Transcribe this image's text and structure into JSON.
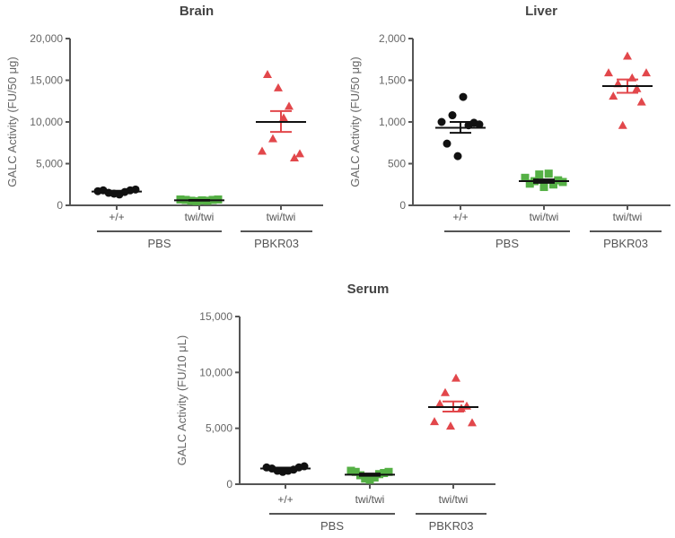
{
  "colors": {
    "wt": "#111111",
    "twi": "#55b045",
    "treated": "#e2474b",
    "axis": "#555555"
  },
  "chart_data": [
    {
      "type": "scatter",
      "title": "Brain",
      "ylabel": "GALC Activity (FU/50 μg)",
      "ylim": [
        0,
        20000
      ],
      "yticks": [
        0,
        5000,
        10000,
        15000,
        20000
      ],
      "ytick_labels": [
        "0",
        "5,000",
        "10,000",
        "15,000",
        "20,000"
      ],
      "categories": [
        "+/+",
        "twi/twi",
        "twi/twi"
      ],
      "groups": [
        {
          "label": "PBS",
          "span": [
            0,
            1
          ]
        },
        {
          "label": "PBKR03",
          "span": [
            2,
            2
          ]
        }
      ],
      "series": [
        {
          "name": "+/+ PBS",
          "marker": "circle",
          "color_key": "wt",
          "values": [
            1700,
            1800,
            1500,
            1400,
            1300,
            1600,
            1800,
            1900
          ],
          "mean": 1650,
          "sem": [
            1550,
            1750
          ]
        },
        {
          "name": "twi/twi PBS",
          "marker": "square",
          "color_key": "twi",
          "values": [
            700,
            650,
            550,
            500,
            600,
            550,
            650,
            700
          ],
          "mean": 600,
          "sem": [
            560,
            640
          ]
        },
        {
          "name": "twi/twi PBKR03",
          "marker": "triangle",
          "color_key": "treated",
          "values": [
            6500,
            15700,
            8000,
            14100,
            10500,
            11900,
            5700,
            6200
          ],
          "mean": 10000,
          "sem": [
            8800,
            11300
          ]
        }
      ]
    },
    {
      "type": "scatter",
      "title": "Liver",
      "ylabel": "GALC Activity (FU/50 μg)",
      "ylim": [
        0,
        2000
      ],
      "yticks": [
        0,
        500,
        1000,
        1500,
        2000
      ],
      "ytick_labels": [
        "0",
        "500",
        "1,000",
        "1,500",
        "2,000"
      ],
      "categories": [
        "+/+",
        "twi/twi",
        "twi/twi"
      ],
      "groups": [
        {
          "label": "PBS",
          "span": [
            0,
            1
          ]
        },
        {
          "label": "PBKR03",
          "span": [
            2,
            2
          ]
        }
      ],
      "series": [
        {
          "name": "+/+ PBS",
          "marker": "circle",
          "color_key": "wt",
          "values": [
            1000,
            740,
            1080,
            590,
            1300,
            960,
            990,
            970
          ],
          "mean": 930,
          "sem": [
            870,
            1000
          ]
        },
        {
          "name": "twi/twi PBS",
          "marker": "square",
          "color_key": "twi",
          "values": [
            330,
            260,
            290,
            370,
            220,
            380,
            250,
            300,
            280
          ],
          "mean": 290,
          "sem": [
            270,
            310
          ]
        },
        {
          "name": "twi/twi PBKR03",
          "marker": "triangle",
          "color_key": "treated",
          "values": [
            1590,
            1310,
            1460,
            960,
            1790,
            1530,
            1400,
            1240,
            1590
          ],
          "mean": 1430,
          "sem": [
            1350,
            1510
          ]
        }
      ]
    },
    {
      "type": "scatter",
      "title": "Serum",
      "ylabel": "GALC Activity (FU/10 μL)",
      "ylim": [
        0,
        15000
      ],
      "yticks": [
        0,
        5000,
        10000,
        15000
      ],
      "ytick_labels": [
        "0",
        "5,000",
        "10,000",
        "15,000"
      ],
      "categories": [
        "+/+",
        "twi/twi",
        "twi/twi"
      ],
      "groups": [
        {
          "label": "PBS",
          "span": [
            0,
            1
          ]
        },
        {
          "label": "PBKR03",
          "span": [
            2,
            2
          ]
        }
      ],
      "series": [
        {
          "name": "+/+ PBS",
          "marker": "circle",
          "color_key": "wt",
          "values": [
            1500,
            1400,
            1200,
            1100,
            1200,
            1300,
            1500,
            1600
          ],
          "mean": 1400,
          "sem": [
            1320,
            1480
          ]
        },
        {
          "name": "twi/twi PBS",
          "marker": "square",
          "color_key": "twi",
          "values": [
            1200,
            1100,
            800,
            500,
            400,
            600,
            900,
            1000,
            1100
          ],
          "mean": 850,
          "sem": [
            750,
            950
          ]
        },
        {
          "name": "twi/twi PBKR03",
          "marker": "triangle",
          "color_key": "treated",
          "values": [
            5600,
            7200,
            8200,
            5200,
            9500,
            6800,
            7000,
            5500
          ],
          "mean": 6900,
          "sem": [
            6500,
            7400
          ]
        }
      ]
    }
  ]
}
